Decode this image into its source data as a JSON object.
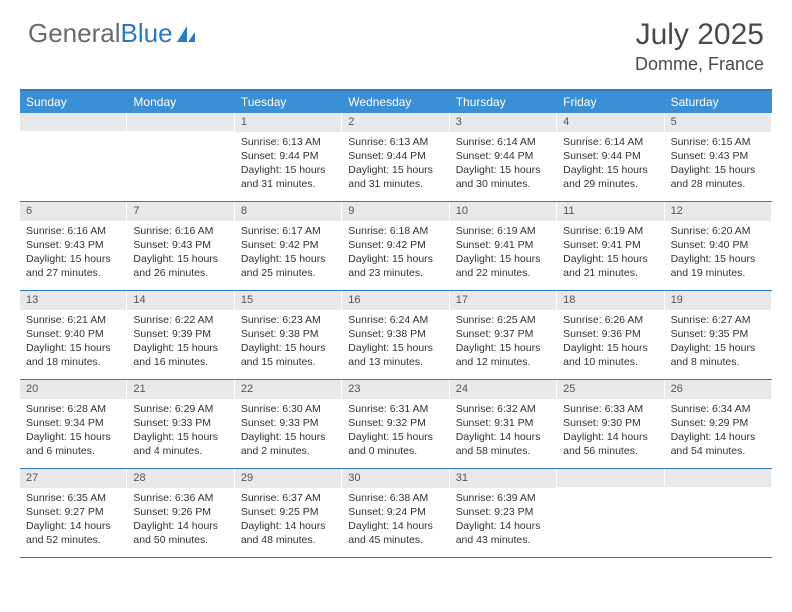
{
  "logo": {
    "text_gray": "General",
    "text_blue": "Blue"
  },
  "title": "July 2025",
  "location": "Domme, France",
  "colors": {
    "header_bg": "#3b8fd4",
    "border": "#2a7ac0",
    "daynum_bg": "#e8e8e8",
    "text": "#333333",
    "logo_gray": "#6a6a6a",
    "logo_blue": "#2a7ac0"
  },
  "weekdays": [
    "Sunday",
    "Monday",
    "Tuesday",
    "Wednesday",
    "Thursday",
    "Friday",
    "Saturday"
  ],
  "weeks": [
    [
      {
        "num": "",
        "sunrise": "",
        "sunset": "",
        "daylight": ""
      },
      {
        "num": "",
        "sunrise": "",
        "sunset": "",
        "daylight": ""
      },
      {
        "num": "1",
        "sunrise": "Sunrise: 6:13 AM",
        "sunset": "Sunset: 9:44 PM",
        "daylight": "Daylight: 15 hours and 31 minutes."
      },
      {
        "num": "2",
        "sunrise": "Sunrise: 6:13 AM",
        "sunset": "Sunset: 9:44 PM",
        "daylight": "Daylight: 15 hours and 31 minutes."
      },
      {
        "num": "3",
        "sunrise": "Sunrise: 6:14 AM",
        "sunset": "Sunset: 9:44 PM",
        "daylight": "Daylight: 15 hours and 30 minutes."
      },
      {
        "num": "4",
        "sunrise": "Sunrise: 6:14 AM",
        "sunset": "Sunset: 9:44 PM",
        "daylight": "Daylight: 15 hours and 29 minutes."
      },
      {
        "num": "5",
        "sunrise": "Sunrise: 6:15 AM",
        "sunset": "Sunset: 9:43 PM",
        "daylight": "Daylight: 15 hours and 28 minutes."
      }
    ],
    [
      {
        "num": "6",
        "sunrise": "Sunrise: 6:16 AM",
        "sunset": "Sunset: 9:43 PM",
        "daylight": "Daylight: 15 hours and 27 minutes."
      },
      {
        "num": "7",
        "sunrise": "Sunrise: 6:16 AM",
        "sunset": "Sunset: 9:43 PM",
        "daylight": "Daylight: 15 hours and 26 minutes."
      },
      {
        "num": "8",
        "sunrise": "Sunrise: 6:17 AM",
        "sunset": "Sunset: 9:42 PM",
        "daylight": "Daylight: 15 hours and 25 minutes."
      },
      {
        "num": "9",
        "sunrise": "Sunrise: 6:18 AM",
        "sunset": "Sunset: 9:42 PM",
        "daylight": "Daylight: 15 hours and 23 minutes."
      },
      {
        "num": "10",
        "sunrise": "Sunrise: 6:19 AM",
        "sunset": "Sunset: 9:41 PM",
        "daylight": "Daylight: 15 hours and 22 minutes."
      },
      {
        "num": "11",
        "sunrise": "Sunrise: 6:19 AM",
        "sunset": "Sunset: 9:41 PM",
        "daylight": "Daylight: 15 hours and 21 minutes."
      },
      {
        "num": "12",
        "sunrise": "Sunrise: 6:20 AM",
        "sunset": "Sunset: 9:40 PM",
        "daylight": "Daylight: 15 hours and 19 minutes."
      }
    ],
    [
      {
        "num": "13",
        "sunrise": "Sunrise: 6:21 AM",
        "sunset": "Sunset: 9:40 PM",
        "daylight": "Daylight: 15 hours and 18 minutes."
      },
      {
        "num": "14",
        "sunrise": "Sunrise: 6:22 AM",
        "sunset": "Sunset: 9:39 PM",
        "daylight": "Daylight: 15 hours and 16 minutes."
      },
      {
        "num": "15",
        "sunrise": "Sunrise: 6:23 AM",
        "sunset": "Sunset: 9:38 PM",
        "daylight": "Daylight: 15 hours and 15 minutes."
      },
      {
        "num": "16",
        "sunrise": "Sunrise: 6:24 AM",
        "sunset": "Sunset: 9:38 PM",
        "daylight": "Daylight: 15 hours and 13 minutes."
      },
      {
        "num": "17",
        "sunrise": "Sunrise: 6:25 AM",
        "sunset": "Sunset: 9:37 PM",
        "daylight": "Daylight: 15 hours and 12 minutes."
      },
      {
        "num": "18",
        "sunrise": "Sunrise: 6:26 AM",
        "sunset": "Sunset: 9:36 PM",
        "daylight": "Daylight: 15 hours and 10 minutes."
      },
      {
        "num": "19",
        "sunrise": "Sunrise: 6:27 AM",
        "sunset": "Sunset: 9:35 PM",
        "daylight": "Daylight: 15 hours and 8 minutes."
      }
    ],
    [
      {
        "num": "20",
        "sunrise": "Sunrise: 6:28 AM",
        "sunset": "Sunset: 9:34 PM",
        "daylight": "Daylight: 15 hours and 6 minutes."
      },
      {
        "num": "21",
        "sunrise": "Sunrise: 6:29 AM",
        "sunset": "Sunset: 9:33 PM",
        "daylight": "Daylight: 15 hours and 4 minutes."
      },
      {
        "num": "22",
        "sunrise": "Sunrise: 6:30 AM",
        "sunset": "Sunset: 9:33 PM",
        "daylight": "Daylight: 15 hours and 2 minutes."
      },
      {
        "num": "23",
        "sunrise": "Sunrise: 6:31 AM",
        "sunset": "Sunset: 9:32 PM",
        "daylight": "Daylight: 15 hours and 0 minutes."
      },
      {
        "num": "24",
        "sunrise": "Sunrise: 6:32 AM",
        "sunset": "Sunset: 9:31 PM",
        "daylight": "Daylight: 14 hours and 58 minutes."
      },
      {
        "num": "25",
        "sunrise": "Sunrise: 6:33 AM",
        "sunset": "Sunset: 9:30 PM",
        "daylight": "Daylight: 14 hours and 56 minutes."
      },
      {
        "num": "26",
        "sunrise": "Sunrise: 6:34 AM",
        "sunset": "Sunset: 9:29 PM",
        "daylight": "Daylight: 14 hours and 54 minutes."
      }
    ],
    [
      {
        "num": "27",
        "sunrise": "Sunrise: 6:35 AM",
        "sunset": "Sunset: 9:27 PM",
        "daylight": "Daylight: 14 hours and 52 minutes."
      },
      {
        "num": "28",
        "sunrise": "Sunrise: 6:36 AM",
        "sunset": "Sunset: 9:26 PM",
        "daylight": "Daylight: 14 hours and 50 minutes."
      },
      {
        "num": "29",
        "sunrise": "Sunrise: 6:37 AM",
        "sunset": "Sunset: 9:25 PM",
        "daylight": "Daylight: 14 hours and 48 minutes."
      },
      {
        "num": "30",
        "sunrise": "Sunrise: 6:38 AM",
        "sunset": "Sunset: 9:24 PM",
        "daylight": "Daylight: 14 hours and 45 minutes."
      },
      {
        "num": "31",
        "sunrise": "Sunrise: 6:39 AM",
        "sunset": "Sunset: 9:23 PM",
        "daylight": "Daylight: 14 hours and 43 minutes."
      },
      {
        "num": "",
        "sunrise": "",
        "sunset": "",
        "daylight": ""
      },
      {
        "num": "",
        "sunrise": "",
        "sunset": "",
        "daylight": ""
      }
    ]
  ]
}
